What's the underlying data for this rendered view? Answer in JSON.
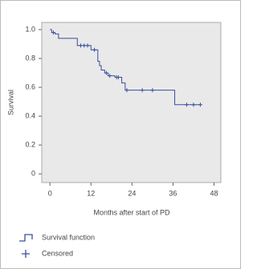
{
  "chart_data": {
    "type": "survival",
    "x_label": "Months after start of PD",
    "y_label": "Survival",
    "xlim": [
      -2.4,
      50
    ],
    "ylim": [
      -0.06,
      1.05
    ],
    "xticks": [
      0,
      12,
      24,
      36,
      48
    ],
    "yticks": [
      0,
      0.2,
      0.4,
      0.6,
      0.8,
      {
        "value": 1,
        "label": "1.0"
      }
    ],
    "series": [
      {
        "name": "Survival function",
        "color": "#3a4f9c",
        "drawstyle": "steps-post",
        "x": [
          0,
          0.5,
          1.5,
          2.5,
          8,
          12,
          14,
          14.5,
          15,
          16,
          17,
          19,
          21,
          22,
          36.5,
          44
        ],
        "values": [
          1,
          0.98,
          0.97,
          0.94,
          0.89,
          0.86,
          0.78,
          0.75,
          0.72,
          0.7,
          0.68,
          0.67,
          0.63,
          0.58,
          0.48,
          0.48
        ]
      },
      {
        "name": "Censored",
        "color": "#3a4f9c",
        "marker": "+",
        "x": [
          1,
          9,
          10,
          11,
          13,
          16.5,
          17.5,
          19.5,
          20,
          22.5,
          27,
          30,
          40,
          42,
          44
        ],
        "values": [
          0.98,
          0.89,
          0.89,
          0.89,
          0.86,
          0.7,
          0.68,
          0.67,
          0.67,
          0.58,
          0.58,
          0.58,
          0.48,
          0.48,
          0.48
        ]
      }
    ]
  }
}
